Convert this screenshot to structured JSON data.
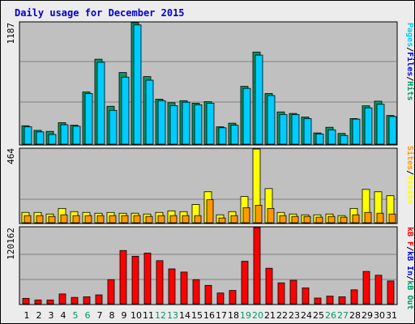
{
  "title": "Daily usage for December 2015",
  "colors": {
    "hits": "#009966",
    "files": "#0000ff",
    "pages": "#00ccff",
    "visits": "#ffff00",
    "sites": "#ff9900",
    "kb_f": "#ff0000",
    "kb_in": "#0000ff",
    "kb_out": "#009966",
    "weekend_day": "#009966",
    "weekday": "#000000",
    "plot_bg": "#c0c0c0"
  },
  "legend": {
    "top": [
      {
        "text": "Pages",
        "color": "#00ccff"
      },
      {
        "text": "/",
        "color": "#000000"
      },
      {
        "text": "Files",
        "color": "#0000ff"
      },
      {
        "text": "/",
        "color": "#000000"
      },
      {
        "text": "Hits",
        "color": "#009966"
      }
    ],
    "middle": [
      {
        "text": "Sites",
        "color": "#ff9900"
      },
      {
        "text": "/",
        "color": "#000000"
      },
      {
        "text": "Visits",
        "color": "#ffff00"
      }
    ],
    "bottom": [
      {
        "text": "kB F",
        "color": "#ff0000"
      },
      {
        "text": "/",
        "color": "#000000"
      },
      {
        "text": "kB In",
        "color": "#0000ff"
      },
      {
        "text": "/",
        "color": "#000000"
      },
      {
        "text": "kB Out",
        "color": "#009966"
      }
    ]
  },
  "chart_data": [
    {
      "type": "bar",
      "title": "Daily usage for December 2015",
      "ymax_label": "1187",
      "ylim": [
        0,
        1187
      ],
      "categories": [
        "1",
        "2",
        "3",
        "4",
        "5",
        "6",
        "7",
        "8",
        "9",
        "10",
        "11",
        "12",
        "13",
        "14",
        "15",
        "16",
        "17",
        "18",
        "19",
        "20",
        "21",
        "22",
        "23",
        "24",
        "25",
        "26",
        "27",
        "28",
        "29",
        "30",
        "31"
      ],
      "weekend": [
        5,
        6,
        12,
        13,
        19,
        20,
        26,
        27
      ],
      "series": [
        {
          "name": "Hits",
          "values": [
            180,
            135,
            125,
            210,
            185,
            510,
            830,
            370,
            700,
            1187,
            660,
            440,
            405,
            425,
            400,
            415,
            170,
            205,
            565,
            900,
            495,
            315,
            300,
            265,
            110,
            165,
            105,
            250,
            375,
            420,
            280
          ]
        },
        {
          "name": "Files",
          "values": [
            170,
            120,
            95,
            190,
            175,
            495,
            800,
            330,
            655,
            1165,
            625,
            425,
            375,
            410,
            385,
            400,
            160,
            185,
            545,
            870,
            475,
            290,
            290,
            250,
            100,
            140,
            85,
            245,
            355,
            390,
            270
          ]
        },
        {
          "name": "Pages",
          "values": [
            170,
            120,
            95,
            190,
            175,
            495,
            800,
            330,
            655,
            1165,
            625,
            425,
            375,
            410,
            385,
            400,
            160,
            185,
            545,
            870,
            475,
            290,
            290,
            250,
            100,
            140,
            85,
            245,
            355,
            390,
            270
          ]
        }
      ]
    },
    {
      "type": "bar",
      "ymax_label": "464",
      "ylim": [
        0,
        464
      ],
      "series": [
        {
          "name": "Visits",
          "values": [
            65,
            65,
            55,
            90,
            70,
            65,
            60,
            65,
            60,
            60,
            55,
            65,
            75,
            70,
            115,
            195,
            50,
            70,
            165,
            464,
            215,
            65,
            55,
            50,
            50,
            55,
            45,
            90,
            210,
            195,
            170
          ]
        },
        {
          "name": "Sites",
          "values": [
            45,
            45,
            40,
            50,
            45,
            45,
            45,
            45,
            45,
            45,
            40,
            45,
            45,
            45,
            45,
            145,
            30,
            45,
            95,
            110,
            90,
            45,
            40,
            40,
            35,
            40,
            35,
            50,
            65,
            60,
            55
          ]
        }
      ]
    },
    {
      "type": "bar",
      "ymax_label": "120162",
      "ylim": [
        0,
        120162
      ],
      "series": [
        {
          "name": "kB F",
          "values": [
            8500,
            6000,
            6000,
            15500,
            10000,
            11000,
            14000,
            38000,
            84000,
            75000,
            80000,
            68000,
            55000,
            50000,
            38000,
            29000,
            17000,
            21000,
            67000,
            120162,
            56000,
            33000,
            37000,
            25000,
            9000,
            12000,
            11000,
            22000,
            51000,
            45000,
            36000
          ]
        }
      ]
    }
  ]
}
